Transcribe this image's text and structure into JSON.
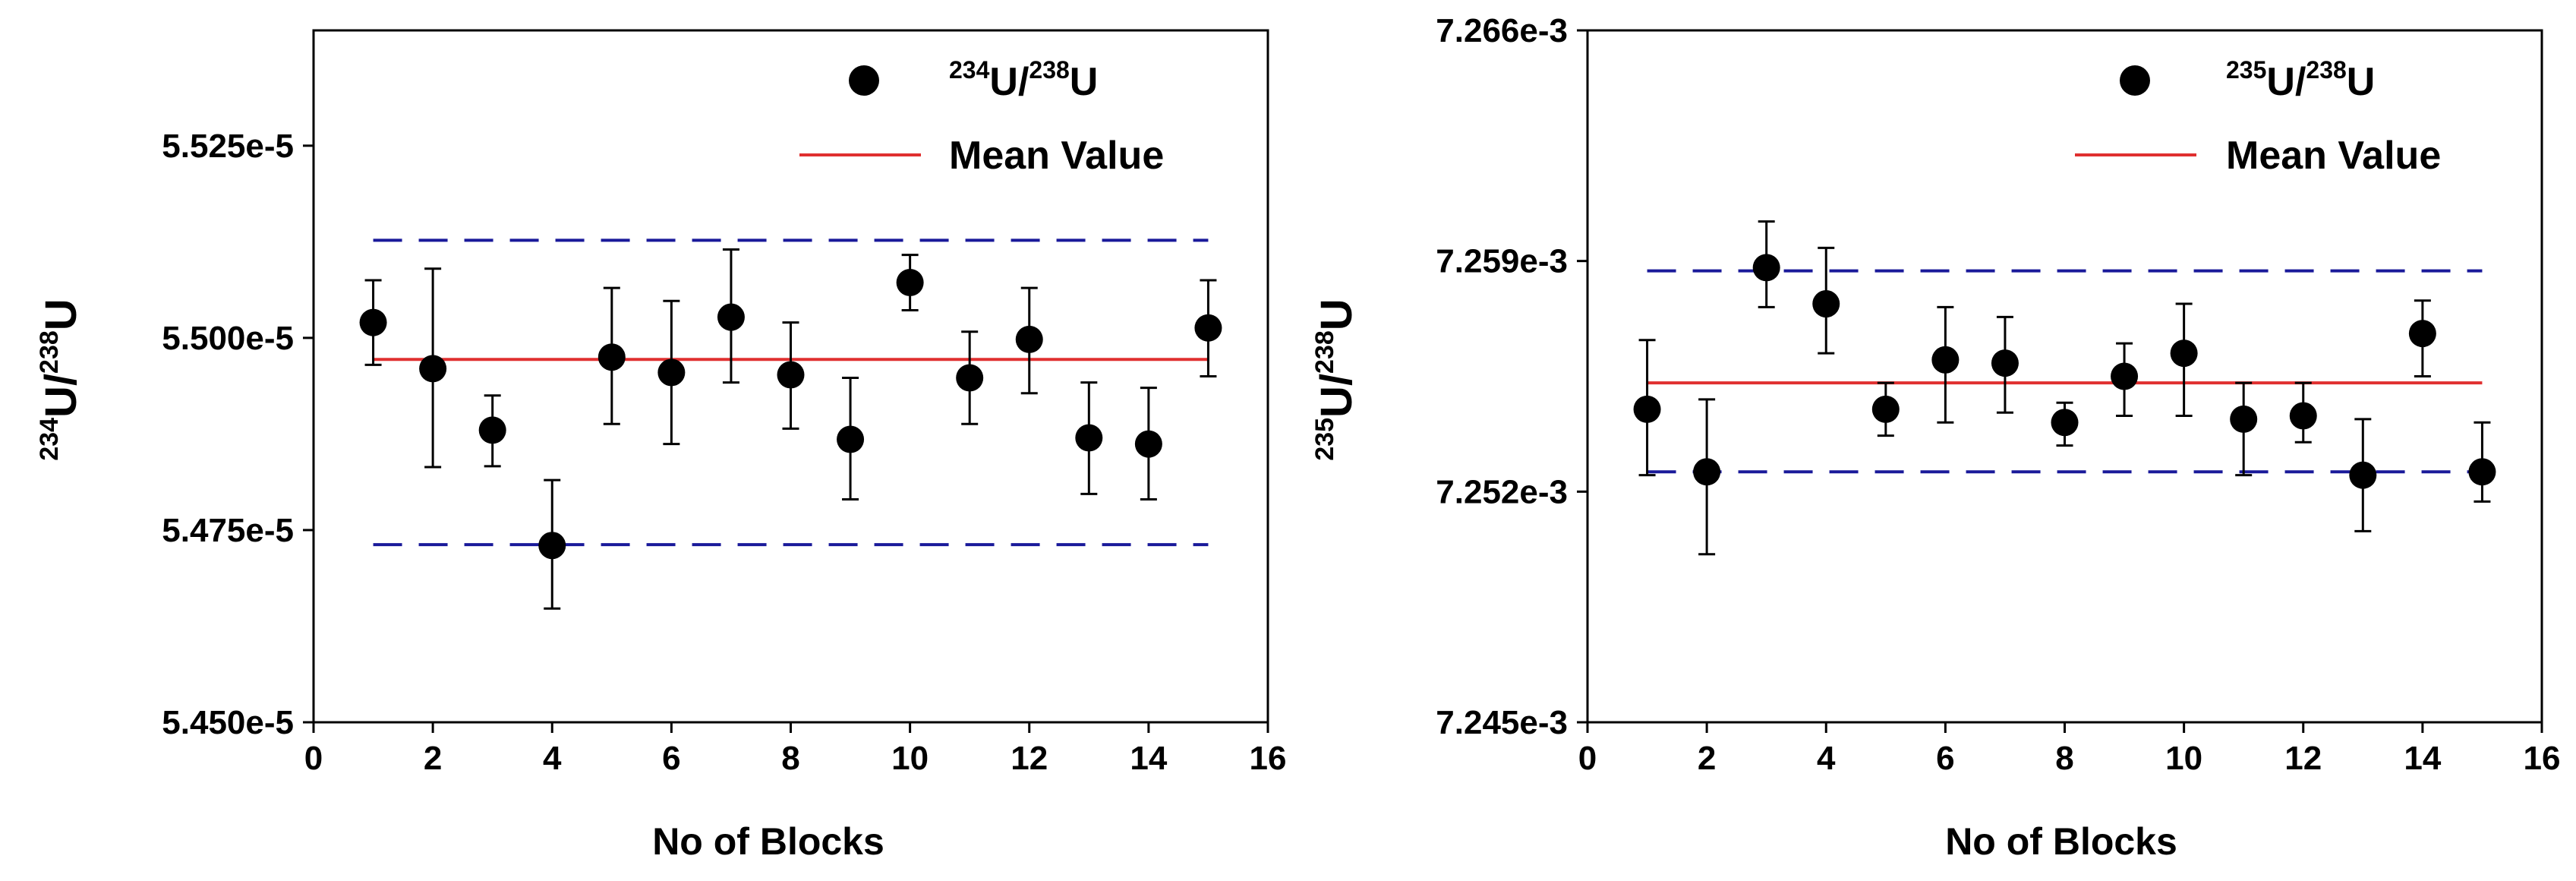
{
  "chart_data": [
    {
      "type": "scatter",
      "title": "",
      "xlabel": "No of Blocks",
      "ylabel": {
        "sup1": "234",
        "base1": "U/",
        "sup2": "238",
        "base2": "U"
      },
      "xlim": [
        0,
        16
      ],
      "ylim": [
        5.45e-05,
        5.54e-05
      ],
      "xticks": [
        0,
        2,
        4,
        6,
        8,
        10,
        12,
        14,
        16
      ],
      "xtick_labels": [
        "0",
        "2",
        "4",
        "6",
        "8",
        "10",
        "12",
        "14",
        "16"
      ],
      "yticks": [
        5.45e-05,
        5.475e-05,
        5.5e-05,
        5.525e-05
      ],
      "ytick_labels": [
        "5.450e-5",
        "5.475e-5",
        "5.500e-5",
        "5.525e-5"
      ],
      "legend": {
        "series_label": {
          "sup1": "234",
          "base1": "U/",
          "sup2": "238",
          "base2": "U"
        },
        "mean_label": "Mean Value"
      },
      "series": [
        {
          "name": "234U/238U",
          "x": [
            1,
            2,
            3,
            4,
            5,
            6,
            7,
            8,
            9,
            10,
            11,
            12,
            13,
            14,
            15
          ],
          "y": [
            5.502e-05,
            5.496e-05,
            5.488e-05,
            5.473e-05,
            5.4975e-05,
            5.4955e-05,
            5.5027e-05,
            5.4952e-05,
            5.4868e-05,
            5.5072e-05,
            5.4948e-05,
            5.4998e-05,
            5.487e-05,
            5.4862e-05,
            5.5013e-05
          ],
          "err_upper": [
            5.5075e-05,
            5.509e-05,
            5.4925e-05,
            5.4815e-05,
            5.5065e-05,
            5.5048e-05,
            5.5115e-05,
            5.502e-05,
            5.4948e-05,
            5.5108e-05,
            5.5008e-05,
            5.5065e-05,
            5.4942e-05,
            5.4935e-05,
            5.5075e-05
          ],
          "err_lower": [
            5.4965e-05,
            5.4832e-05,
            5.4833e-05,
            5.4648e-05,
            5.4888e-05,
            5.4862e-05,
            5.4942e-05,
            5.4882e-05,
            5.479e-05,
            5.5036e-05,
            5.4888e-05,
            5.4928e-05,
            5.4797e-05,
            5.479e-05,
            5.495e-05
          ]
        }
      ],
      "mean_value": 5.4972e-05,
      "bounds": [
        5.5127e-05,
        5.4731e-05
      ],
      "mean_color": "#e03030",
      "bound_color": "#1a1a9a",
      "marker_color": "#000000"
    },
    {
      "type": "scatter",
      "title": "",
      "xlabel": "No of Blocks",
      "ylabel": {
        "sup1": "235",
        "base1": "U/",
        "sup2": "238",
        "base2": "U"
      },
      "xlim": [
        0,
        16
      ],
      "ylim": [
        0.007245,
        0.007266
      ],
      "xticks": [
        0,
        2,
        4,
        6,
        8,
        10,
        12,
        14,
        16
      ],
      "xtick_labels": [
        "0",
        "2",
        "4",
        "6",
        "8",
        "10",
        "12",
        "14",
        "16"
      ],
      "yticks": [
        0.007245,
        0.007252,
        0.007259,
        0.007266
      ],
      "ytick_labels": [
        "7.245e-3",
        "7.252e-3",
        "7.259e-3",
        "7.266e-3"
      ],
      "legend": {
        "series_label": {
          "sup1": "235",
          "base1": "U/",
          "sup2": "238",
          "base2": "U"
        },
        "mean_label": "Mean Value"
      },
      "series": [
        {
          "name": "235U/238U",
          "x": [
            1,
            2,
            3,
            4,
            5,
            6,
            7,
            8,
            9,
            10,
            11,
            12,
            13,
            14,
            15
          ],
          "y": [
            0.0072545,
            0.0072526,
            0.0072588,
            0.0072577,
            0.0072545,
            0.007256,
            0.0072559,
            0.0072541,
            0.0072555,
            0.0072562,
            0.0072542,
            0.0072543,
            0.0072525,
            0.0072568,
            0.0072526
          ],
          "err_upper": [
            0.0072566,
            0.0072548,
            0.0072602,
            0.0072594,
            0.0072553,
            0.0072576,
            0.0072573,
            0.0072547,
            0.0072565,
            0.0072577,
            0.0072553,
            0.0072553,
            0.0072542,
            0.0072578,
            0.0072541
          ],
          "err_lower": [
            0.0072525,
            0.0072501,
            0.0072576,
            0.0072562,
            0.0072537,
            0.0072541,
            0.0072544,
            0.0072534,
            0.0072543,
            0.0072543,
            0.0072525,
            0.0072535,
            0.0072508,
            0.0072555,
            0.0072517
          ]
        }
      ],
      "mean_value": 0.0072553,
      "bounds": [
        0.0072587,
        0.0072526
      ],
      "mean_color": "#e03030",
      "bound_color": "#1a1a9a",
      "marker_color": "#000000"
    }
  ]
}
